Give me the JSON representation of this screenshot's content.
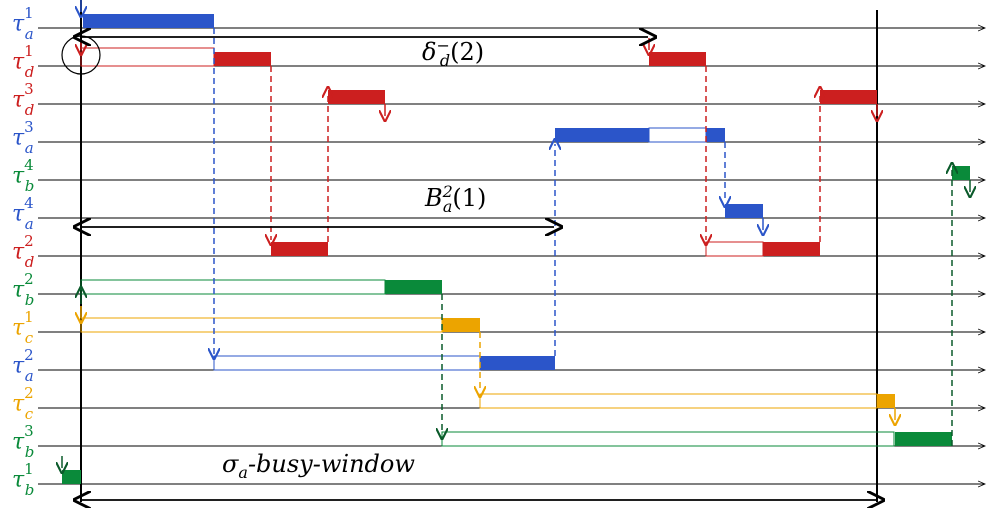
{
  "colors": {
    "a": "#2b55c9",
    "b": "#0a8a3a",
    "c": "#eca400",
    "d": "#cc1f1f"
  },
  "tasks": [
    {
      "sym": "τ",
      "sub": "a",
      "sup": "1"
    },
    {
      "sym": "τ",
      "sub": "d",
      "sup": "1"
    },
    {
      "sym": "τ",
      "sub": "d",
      "sup": "3"
    },
    {
      "sym": "τ",
      "sub": "a",
      "sup": "3"
    },
    {
      "sym": "τ",
      "sub": "b",
      "sup": "4"
    },
    {
      "sym": "τ",
      "sub": "a",
      "sup": "4"
    },
    {
      "sym": "τ",
      "sub": "d",
      "sup": "2"
    },
    {
      "sym": "τ",
      "sub": "b",
      "sup": "2"
    },
    {
      "sym": "τ",
      "sub": "c",
      "sup": "1"
    },
    {
      "sym": "τ",
      "sub": "a",
      "sup": "2"
    },
    {
      "sym": "τ",
      "sub": "c",
      "sup": "2"
    },
    {
      "sym": "τ",
      "sub": "b",
      "sup": "3"
    },
    {
      "sym": "τ",
      "sub": "b",
      "sup": "1"
    }
  ],
  "annotations": {
    "delta": {
      "sym": "δ",
      "sub": "d",
      "sup": "−",
      "arg": "(2)"
    },
    "busy_b": {
      "sym": "B",
      "sub": "a",
      "sup": "2",
      "arg": "(1)"
    },
    "window": {
      "sym": "σ",
      "sub": "a",
      "text": "-busy-window"
    }
  }
}
